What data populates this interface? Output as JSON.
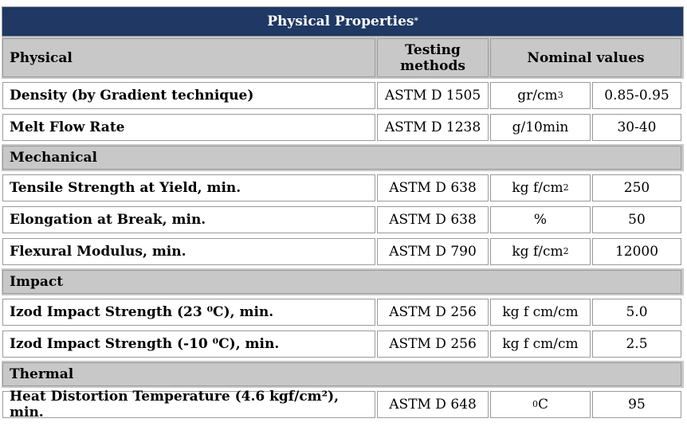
{
  "title": "Physical Properties",
  "title_mark": "*",
  "header": {
    "col1": "Physical",
    "col2_line1": "Testing",
    "col2_line2": "methods",
    "col3": "Nominal values"
  },
  "rows": [
    {
      "type": "data",
      "name": "Density  (by Gradient technique)",
      "method": "ASTM D 1505",
      "unit": "gr/cm",
      "unit_sup": "3",
      "unit_tail": "",
      "value": "0.85-0.95"
    },
    {
      "type": "data",
      "name": "Melt Flow Rate",
      "method": "ASTM D 1238",
      "unit": "g/10min",
      "unit_sup": "",
      "unit_tail": "",
      "value": "30-40"
    },
    {
      "type": "section",
      "name": "Mechanical"
    },
    {
      "type": "data",
      "name": "Tensile Strength at Yield, min.",
      "method": "ASTM D 638",
      "unit": "kg f/cm",
      "unit_sup": "2",
      "unit_tail": "",
      "value": "250"
    },
    {
      "type": "data",
      "name": "Elongation at Break, min.",
      "method": "ASTM D 638",
      "unit": "%",
      "unit_sup": "",
      "unit_tail": "",
      "value": "50"
    },
    {
      "type": "data",
      "name": "Flexural Modulus, min.",
      "method": "ASTM D 790",
      "unit": "kg f/cm",
      "unit_sup": "2",
      "unit_tail": "",
      "value": "12000"
    },
    {
      "type": "section",
      "name": "Impact"
    },
    {
      "type": "data",
      "name": "Izod Impact Strength (23 ⁰C), min.",
      "method": "ASTM D 256",
      "unit": "kg f cm/cm",
      "unit_sup": "",
      "unit_tail": "",
      "value": "5.0"
    },
    {
      "type": "data",
      "name": "Izod Impact Strength (-10 ⁰C), min.",
      "method": "ASTM D 256",
      "unit": "kg f cm/cm",
      "unit_sup": "",
      "unit_tail": "",
      "value": "2.5"
    },
    {
      "type": "section",
      "name": "Thermal"
    },
    {
      "type": "data",
      "name": "Heat Distortion Temperature (4.6 kgf/cm²), min.",
      "method": "ASTM D 648",
      "unit": "",
      "unit_sup": "0",
      "unit_tail": "C",
      "value": "95"
    }
  ]
}
